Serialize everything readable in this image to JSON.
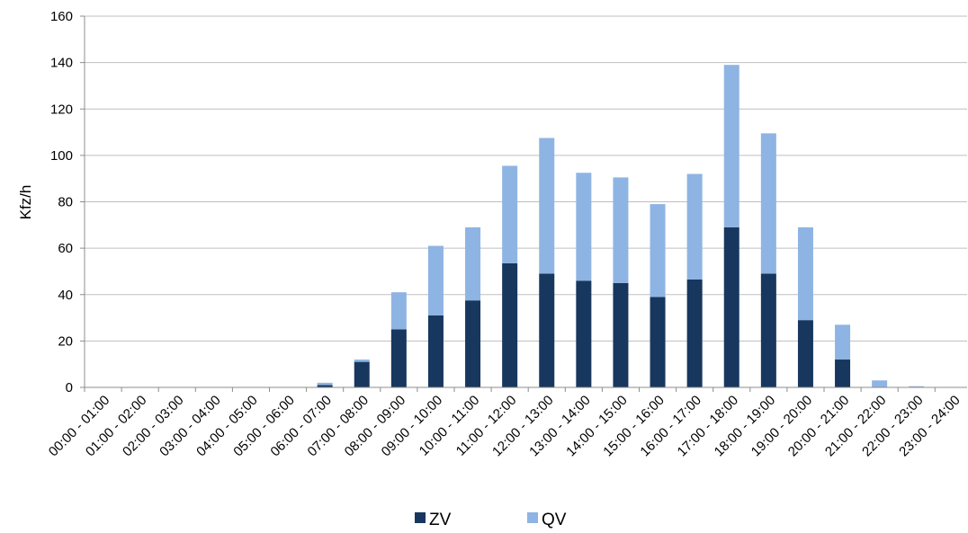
{
  "chart_data": {
    "type": "bar",
    "stacked": true,
    "ylabel": "Kfz/h",
    "xlabel": "",
    "ylim": [
      0,
      160
    ],
    "yticks": [
      "0",
      "20",
      "40",
      "60",
      "80",
      "100",
      "120",
      "140",
      "160"
    ],
    "grid": true,
    "legend_position": "bottom",
    "categories": [
      "00:00 - 01:00",
      "01:00 - 02:00",
      "02:00 - 03:00",
      "03:00 - 04:00",
      "04:00 - 05:00",
      "05:00 - 06:00",
      "06:00 - 07:00",
      "07:00 - 08:00",
      "08:00 - 09:00",
      "09:00 - 10:00",
      "10:00 - 11:00",
      "11:00 - 12:00",
      "12:00 - 13:00",
      "13:00 - 14:00",
      "14:00 - 15:00",
      "15:00 - 16:00",
      "16:00 - 17:00",
      "17:00 - 18:00",
      "18:00 - 19:00",
      "19:00 - 20:00",
      "20:00 - 21:00",
      "21:00 - 22:00",
      "22:00 - 23:00",
      "23:00 - 24:00"
    ],
    "series": [
      {
        "name": "ZV",
        "color": "#17375e",
        "values": [
          0,
          0,
          0,
          0,
          0,
          0,
          1,
          11,
          25,
          31,
          37.5,
          53.5,
          49,
          46,
          45,
          39,
          46.5,
          69,
          49,
          29,
          12,
          0,
          0,
          0
        ]
      },
      {
        "name": "QV",
        "color": "#8eb4e3",
        "values": [
          0,
          0,
          0,
          0,
          0,
          0,
          1,
          1,
          16,
          30,
          31.5,
          42,
          58.5,
          46.5,
          45.5,
          40,
          45.5,
          70,
          60.5,
          40,
          15,
          3,
          0.5,
          0
        ]
      }
    ]
  }
}
